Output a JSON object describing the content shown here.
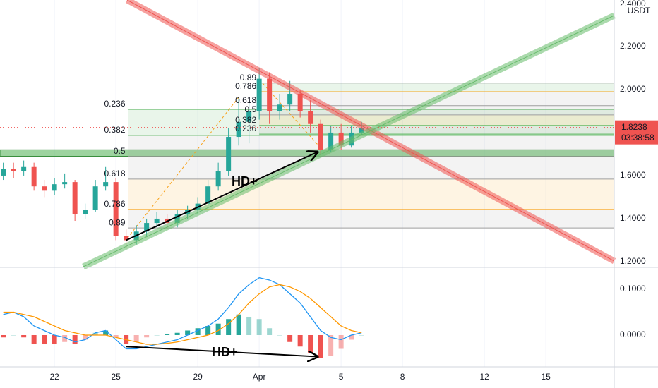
{
  "chart_data": [
    {
      "type": "candlestick",
      "currency": "USDT",
      "x": [
        -2.5,
        -2,
        -1.5,
        -1,
        -0.5,
        0,
        0.5,
        1,
        1.5,
        2,
        2.5,
        3,
        3.5,
        4,
        4.5,
        5,
        5.5,
        6,
        6.5,
        7,
        7.5,
        8,
        8.5,
        9,
        9.5,
        10,
        10.5,
        11,
        11.5,
        12,
        12.5,
        13,
        13.5,
        14,
        14.5,
        15
      ],
      "open": [
        1.6,
        1.63,
        1.62,
        1.64,
        1.55,
        1.53,
        1.56,
        1.57,
        1.42,
        1.44,
        1.55,
        1.57,
        1.32,
        1.3,
        1.34,
        1.38,
        1.4,
        1.38,
        1.42,
        1.44,
        1.47,
        1.55,
        1.62,
        1.78,
        1.85,
        1.9,
        2.05,
        1.9,
        1.93,
        1.98,
        1.9,
        1.84,
        1.72,
        1.8,
        1.74,
        1.8
      ],
      "high": [
        1.66,
        1.66,
        1.67,
        1.66,
        1.58,
        1.59,
        1.61,
        1.58,
        1.47,
        1.58,
        1.64,
        1.59,
        1.35,
        1.37,
        1.4,
        1.43,
        1.42,
        1.44,
        1.46,
        1.5,
        1.58,
        1.66,
        1.82,
        1.96,
        1.96,
        2.1,
        2.08,
        1.98,
        2.04,
        2.0,
        1.95,
        1.86,
        1.83,
        1.84,
        1.83,
        1.85
      ],
      "low": [
        1.58,
        1.59,
        1.6,
        1.53,
        1.5,
        1.51,
        1.54,
        1.39,
        1.4,
        1.43,
        1.53,
        1.3,
        1.26,
        1.28,
        1.32,
        1.36,
        1.35,
        1.36,
        1.4,
        1.42,
        1.46,
        1.53,
        1.6,
        1.74,
        1.75,
        1.86,
        1.84,
        1.86,
        1.9,
        1.87,
        1.8,
        1.7,
        1.71,
        1.72,
        1.73,
        1.79
      ],
      "close": [
        1.63,
        1.62,
        1.64,
        1.55,
        1.53,
        1.56,
        1.57,
        1.42,
        1.44,
        1.55,
        1.57,
        1.32,
        1.3,
        1.34,
        1.38,
        1.4,
        1.38,
        1.42,
        1.44,
        1.47,
        1.55,
        1.62,
        1.78,
        1.85,
        1.9,
        2.05,
        1.9,
        1.93,
        1.98,
        1.9,
        1.84,
        1.72,
        1.8,
        1.74,
        1.8,
        1.82
      ],
      "up_color": "#26a69a",
      "down_color": "#ef5350",
      "xlim": [
        -2.66,
        27.34
      ],
      "ylim": [
        1.177,
        2.416
      ],
      "yticks": [
        {
          "value": 1.2,
          "label": "1.2000"
        },
        {
          "value": 1.4,
          "label": "1.4000"
        },
        {
          "value": 1.6,
          "label": "1.6000"
        },
        {
          "value": 2.0,
          "label": "2.0000"
        },
        {
          "value": 2.2,
          "label": "2.2000"
        },
        {
          "value": 2.4,
          "label": "2.4000"
        }
      ],
      "grid": true,
      "last_price": 1.8238,
      "countdown": "03:38:58",
      "support_zone": [
        1.69,
        1.72
      ],
      "trendlines": [
        {
          "color": "#ef5350",
          "from": [
            3.55,
            2.416
          ],
          "to": [
            27.34,
            1.203
          ]
        },
        {
          "color": "#66bb6a",
          "from": [
            1.41,
            1.177
          ],
          "to": [
            27.34,
            2.344
          ]
        }
      ],
      "fib_left": {
        "start": 3.6,
        "levels": [
          {
            "label": "0.236",
            "price": 1.908,
            "color": "#4caf50"
          },
          {
            "label": "0.382",
            "price": 1.787,
            "color": "#4caf50"
          },
          {
            "label": "0.5",
            "price": 1.689,
            "color": "#9e9e9e"
          },
          {
            "label": "0.618",
            "price": 1.584,
            "color": "#9e9e9e"
          },
          {
            "label": "0.786",
            "price": 1.443,
            "color": "#f7a21b"
          },
          {
            "label": "0.89",
            "price": 1.357,
            "color": "#9e9e9e"
          }
        ]
      },
      "fib_right": {
        "start": 10.0,
        "levels": [
          {
            "label": "0.89",
            "price": 2.03,
            "color": "#9e9e9e"
          },
          {
            "label": "0.786",
            "price": 1.99,
            "color": "#f7a21b"
          },
          {
            "label": "0.618",
            "price": 1.925,
            "color": "#9e9e9e"
          },
          {
            "label": "0.5",
            "price": 1.882,
            "color": "#9e9e9e"
          },
          {
            "label": "0.382",
            "price": 1.833,
            "color": "#4caf50"
          },
          {
            "label": "0.236",
            "price": 1.793,
            "color": "#4caf50"
          }
        ]
      },
      "divergence": {
        "from": [
          3.5,
          1.3
        ],
        "to": [
          12.85,
          1.71
        ]
      },
      "annotations": [
        "HD+"
      ]
    },
    {
      "type": "macd",
      "x": [
        -2.5,
        -2,
        -1.5,
        -1,
        -0.5,
        0,
        0.5,
        1,
        1.5,
        2,
        2.5,
        3,
        3.5,
        4,
        4.5,
        5,
        5.5,
        6,
        6.5,
        7,
        7.5,
        8,
        8.5,
        9,
        9.5,
        10,
        10.5,
        11,
        11.5,
        12,
        12.5,
        13,
        13.5,
        14,
        14.5,
        15
      ],
      "series": [
        {
          "color": "#2196f3",
          "values": [
            0.045,
            0.05,
            0.04,
            0.02,
            0.01,
            0.0,
            -0.005,
            -0.015,
            -0.01,
            0.005,
            0.01,
            -0.01,
            -0.03,
            -0.03,
            -0.025,
            -0.02,
            -0.015,
            -0.01,
            0.0,
            0.01,
            0.02,
            0.035,
            0.06,
            0.09,
            0.11,
            0.125,
            0.12,
            0.11,
            0.09,
            0.07,
            0.04,
            0.01,
            -0.005,
            -0.01,
            0.0,
            0.005
          ]
        },
        {
          "color": "#ff9800",
          "values": [
            0.05,
            0.05,
            0.045,
            0.04,
            0.03,
            0.02,
            0.01,
            0.005,
            0.0,
            0.0,
            0.0,
            -0.005,
            -0.01,
            -0.015,
            -0.02,
            -0.02,
            -0.018,
            -0.015,
            -0.01,
            -0.005,
            0.0,
            0.01,
            0.025,
            0.045,
            0.07,
            0.09,
            0.105,
            0.11,
            0.105,
            0.095,
            0.08,
            0.06,
            0.04,
            0.02,
            0.01,
            0.005
          ]
        }
      ],
      "histogram": [
        -0.005,
        0,
        -0.005,
        -0.02,
        -0.02,
        -0.02,
        -0.015,
        -0.02,
        -0.01,
        0.005,
        0.01,
        -0.005,
        -0.02,
        -0.015,
        -0.005,
        0,
        0.003,
        0.005,
        0.01,
        0.015,
        0.02,
        0.025,
        0.035,
        0.045,
        0.04,
        0.035,
        0.015,
        0,
        -0.015,
        -0.025,
        -0.04,
        -0.05,
        -0.045,
        -0.03,
        -0.01,
        0.0
      ],
      "up_color": "#26a69a",
      "down_color": "#ef5350",
      "xlim": [
        -2.66,
        27.34
      ],
      "ylim": [
        -0.0692,
        0.143
      ],
      "yticks": [
        {
          "value": 0,
          "label": "0.0000"
        },
        {
          "value": 0.1,
          "label": "0.1000"
        }
      ],
      "xticks": [
        {
          "value": 0,
          "label": "22"
        },
        {
          "value": 3,
          "label": "25"
        },
        {
          "value": 7,
          "label": "29"
        },
        {
          "value": 10,
          "label": "Apr"
        },
        {
          "value": 14,
          "label": "5"
        },
        {
          "value": 17,
          "label": "8"
        },
        {
          "value": 21,
          "label": "12"
        },
        {
          "value": 24,
          "label": "15"
        }
      ],
      "grid": true,
      "divergence": {
        "from": [
          3.5,
          -0.025
        ],
        "to": [
          12.85,
          -0.047
        ]
      },
      "annotations": [
        "HD+"
      ]
    }
  ]
}
